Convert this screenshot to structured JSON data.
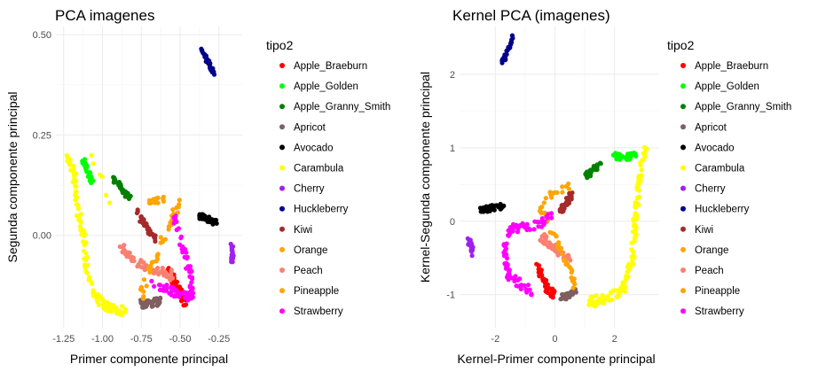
{
  "chart_data": [
    {
      "type": "scatter",
      "title": "PCA imagenes",
      "xlabel": "Primer componente principal",
      "ylabel": "Segunda componente principal",
      "xlim": [
        -1.3,
        -0.1
      ],
      "ylim": [
        -0.23,
        0.52
      ],
      "xticks": [
        -1.25,
        -1.0,
        -0.75,
        -0.5,
        -0.25
      ],
      "xtick_labels": [
        "-1.25",
        "-1.00",
        "-0.75",
        "-0.50",
        "-0.25"
      ],
      "yticks": [
        0.0,
        0.25,
        0.5
      ],
      "ytick_labels": [
        "0.00",
        "0.25",
        "0.50"
      ],
      "grid": true,
      "legend": {
        "title": "tipo2",
        "placement": "right",
        "entries": [
          "Apple_Braeburn",
          "Apple_Golden",
          "Apple_Granny_Smith",
          "Apricot",
          "Avocado",
          "Carambula",
          "Cherry",
          "Huckleberry",
          "Kiwi",
          "Orange",
          "Peach",
          "Pineapple",
          "Strawberry"
        ]
      },
      "series": [
        {
          "name": "Apple_Braeburn",
          "color": "#ff0000",
          "shape": "polyline",
          "path": [
            [
              -0.57,
              -0.09
            ],
            [
              -0.53,
              -0.12
            ],
            [
              -0.5,
              -0.14
            ],
            [
              -0.47,
              -0.17
            ]
          ],
          "n": 45,
          "spread": 0.012
        },
        {
          "name": "Apple_Golden",
          "color": "#00ff00",
          "shape": "polyline",
          "path": [
            [
              -1.13,
              0.19
            ],
            [
              -1.1,
              0.16
            ],
            [
              -1.07,
              0.13
            ]
          ],
          "n": 30,
          "spread": 0.01
        },
        {
          "name": "Apple_Granny_Smith",
          "color": "#008000",
          "shape": "polyline",
          "path": [
            [
              -0.93,
              0.14
            ],
            [
              -0.88,
              0.12
            ],
            [
              -0.82,
              0.09
            ]
          ],
          "n": 35,
          "spread": 0.008
        },
        {
          "name": "Apricot",
          "color": "#7f5f5f",
          "shape": "polyline",
          "path": [
            [
              -0.76,
              -0.17
            ],
            [
              -0.68,
              -0.17
            ],
            [
              -0.62,
              -0.16
            ]
          ],
          "n": 40,
          "spread": 0.01
        },
        {
          "name": "Avocado",
          "color": "#000000",
          "shape": "polyline",
          "path": [
            [
              -0.38,
              0.05
            ],
            [
              -0.32,
              0.04
            ],
            [
              -0.26,
              0.03
            ]
          ],
          "n": 35,
          "spread": 0.008
        },
        {
          "name": "Carambula",
          "color": "#ffff00",
          "shape": "polyline",
          "path": [
            [
              -1.23,
              0.2
            ],
            [
              -1.18,
              0.15
            ],
            [
              -1.16,
              0.06
            ],
            [
              -1.12,
              0.0
            ],
            [
              -1.1,
              -0.09
            ],
            [
              -1.05,
              -0.15
            ],
            [
              -0.97,
              -0.18
            ],
            [
              -0.85,
              -0.19
            ]
          ],
          "n": 130,
          "spread": 0.012,
          "extra_path": [
            [
              -1.08,
              0.22
            ],
            [
              -1.0,
              0.12
            ],
            [
              -0.96,
              0.07
            ]
          ],
          "extra_n": 6
        },
        {
          "name": "Cherry",
          "color": "#a020f0",
          "shape": "polyline",
          "path": [
            [
              -0.17,
              -0.02
            ],
            [
              -0.16,
              -0.05
            ],
            [
              -0.17,
              -0.07
            ]
          ],
          "n": 20,
          "spread": 0.007
        },
        {
          "name": "Huckleberry",
          "color": "#00008b",
          "shape": "polyline",
          "path": [
            [
              -0.37,
              0.47
            ],
            [
              -0.33,
              0.44
            ],
            [
              -0.28,
              0.4
            ]
          ],
          "n": 35,
          "spread": 0.006
        },
        {
          "name": "Kiwi",
          "color": "#a52a2a",
          "shape": "polyline",
          "path": [
            [
              -0.78,
              0.07
            ],
            [
              -0.75,
              0.04
            ],
            [
              -0.7,
              0.01
            ],
            [
              -0.65,
              -0.01
            ]
          ],
          "n": 45,
          "spread": 0.01
        },
        {
          "name": "Orange",
          "color": "#ffa500",
          "shape": "polyline",
          "path": [
            [
              -0.7,
              0.08
            ],
            [
              -0.6,
              0.09
            ]
          ],
          "n": 14,
          "spread": 0.008
        },
        {
          "name": "Peach",
          "color": "#fa8072",
          "shape": "polyline",
          "path": [
            [
              -0.88,
              -0.03
            ],
            [
              -0.8,
              -0.06
            ],
            [
              -0.72,
              -0.08
            ],
            [
              -0.62,
              -0.09
            ],
            [
              -0.55,
              -0.1
            ]
          ],
          "n": 50,
          "spread": 0.012
        },
        {
          "name": "Pineapple",
          "color": "#ffa500",
          "shape": "polyline",
          "path": [
            [
              -0.53,
              0.1
            ],
            [
              -0.51,
              0.08
            ],
            [
              -0.75,
              -0.14
            ],
            [
              -0.73,
              -0.17
            ]
          ],
          "n": 40,
          "spread": 0.012
        },
        {
          "name": "Strawberry",
          "color": "#ff00ff",
          "shape": "polyline",
          "path": [
            [
              -0.54,
              0.05
            ],
            [
              -0.5,
              0.0
            ],
            [
              -0.46,
              -0.06
            ],
            [
              -0.43,
              -0.1
            ],
            [
              -0.42,
              -0.15
            ],
            [
              -0.48,
              -0.15
            ],
            [
              -0.6,
              -0.13
            ],
            [
              -0.68,
              -0.12
            ]
          ],
          "n": 90,
          "spread": 0.012
        }
      ]
    },
    {
      "type": "scatter",
      "title": "Kernel PCA (imagenes)",
      "xlabel": "Kernel-Primer componente principal",
      "ylabel": "Kernel-Segunda componente principal",
      "xlim": [
        -3.2,
        3.5
      ],
      "ylim": [
        -1.45,
        2.65
      ],
      "xticks": [
        -2,
        0,
        2
      ],
      "xtick_labels": [
        "-2",
        "0",
        "2"
      ],
      "yticks": [
        -1,
        0,
        1,
        2
      ],
      "ytick_labels": [
        "-1",
        "0",
        "1",
        "2"
      ],
      "grid": true,
      "legend": {
        "title": "tipo2",
        "placement": "right",
        "entries": [
          "Apple_Braeburn",
          "Apple_Golden",
          "Apple_Granny_Smith",
          "Apricot",
          "Avocado",
          "Carambula",
          "Cherry",
          "Huckleberry",
          "Kiwi",
          "Orange",
          "Peach",
          "Pineapple",
          "Strawberry"
        ]
      },
      "series": [
        {
          "name": "Apple_Braeburn",
          "color": "#ff0000",
          "shape": "polyline",
          "path": [
            [
              -0.6,
              -0.6
            ],
            [
              -0.4,
              -0.8
            ],
            [
              -0.2,
              -0.95
            ],
            [
              0.0,
              -1.0
            ]
          ],
          "n": 45,
          "spread": 0.06
        },
        {
          "name": "Apple_Golden",
          "color": "#00ff00",
          "shape": "polyline",
          "path": [
            [
              1.9,
              0.9
            ],
            [
              2.3,
              0.85
            ],
            [
              2.7,
              0.9
            ]
          ],
          "n": 30,
          "spread": 0.05
        },
        {
          "name": "Apple_Granny_Smith",
          "color": "#008000",
          "shape": "polyline",
          "path": [
            [
              1.0,
              0.6
            ],
            [
              1.3,
              0.7
            ],
            [
              1.55,
              0.8
            ]
          ],
          "n": 35,
          "spread": 0.04
        },
        {
          "name": "Apricot",
          "color": "#7f5f5f",
          "shape": "polyline",
          "path": [
            [
              0.2,
              -1.05
            ],
            [
              0.5,
              -1.0
            ],
            [
              0.7,
              -0.95
            ]
          ],
          "n": 40,
          "spread": 0.04
        },
        {
          "name": "Avocado",
          "color": "#000000",
          "shape": "polyline",
          "path": [
            [
              -2.5,
              0.15
            ],
            [
              -2.1,
              0.18
            ],
            [
              -1.7,
              0.2
            ]
          ],
          "n": 35,
          "spread": 0.04
        },
        {
          "name": "Carambula",
          "color": "#ffff00",
          "shape": "polyline",
          "path": [
            [
              1.2,
              -1.1
            ],
            [
              1.8,
              -1.05
            ],
            [
              2.3,
              -0.9
            ],
            [
              2.6,
              -0.5
            ],
            [
              2.7,
              0.0
            ],
            [
              2.8,
              0.5
            ],
            [
              2.95,
              0.85
            ],
            [
              3.1,
              1.05
            ]
          ],
          "n": 130,
          "spread": 0.07
        },
        {
          "name": "Cherry",
          "color": "#a020f0",
          "shape": "polyline",
          "path": [
            [
              -2.9,
              -0.25
            ],
            [
              -2.8,
              -0.35
            ],
            [
              -2.75,
              -0.45
            ]
          ],
          "n": 20,
          "spread": 0.04
        },
        {
          "name": "Huckleberry",
          "color": "#00008b",
          "shape": "polyline",
          "path": [
            [
              -1.8,
              2.15
            ],
            [
              -1.6,
              2.3
            ],
            [
              -1.4,
              2.5
            ]
          ],
          "n": 35,
          "spread": 0.035
        },
        {
          "name": "Kiwi",
          "color": "#a52a2a",
          "shape": "polyline",
          "path": [
            [
              0.2,
              0.15
            ],
            [
              0.4,
              0.25
            ],
            [
              0.55,
              0.35
            ]
          ],
          "n": 45,
          "spread": 0.05
        },
        {
          "name": "Orange",
          "color": "#ffa500",
          "shape": "polyline",
          "path": [
            [
              -0.45,
              0.4
            ],
            [
              -0.4,
              0.3
            ],
            [
              0.6,
              0.5
            ]
          ],
          "n": 14,
          "spread": 0.05
        },
        {
          "name": "Peach",
          "color": "#fa8072",
          "shape": "polyline",
          "path": [
            [
              -0.5,
              -0.2
            ],
            [
              -0.2,
              -0.3
            ],
            [
              0.1,
              -0.4
            ],
            [
              0.4,
              -0.5
            ],
            [
              0.6,
              -0.55
            ]
          ],
          "n": 50,
          "spread": 0.06
        },
        {
          "name": "Pineapple",
          "color": "#ffa500",
          "shape": "polyline",
          "path": [
            [
              -0.6,
              0.2
            ],
            [
              -0.4,
              0.15
            ],
            [
              0.6,
              -0.75
            ],
            [
              0.65,
              -1.0
            ]
          ],
          "n": 40,
          "spread": 0.06
        },
        {
          "name": "Strawberry",
          "color": "#ff00ff",
          "shape": "polyline",
          "path": [
            [
              -0.1,
              0.1
            ],
            [
              -0.55,
              -0.05
            ],
            [
              -1.5,
              -0.1
            ],
            [
              -1.7,
              -0.4
            ],
            [
              -1.6,
              -0.7
            ],
            [
              -1.1,
              -0.9
            ],
            [
              -0.8,
              -0.95
            ]
          ],
          "n": 90,
          "spread": 0.06
        }
      ]
    }
  ]
}
